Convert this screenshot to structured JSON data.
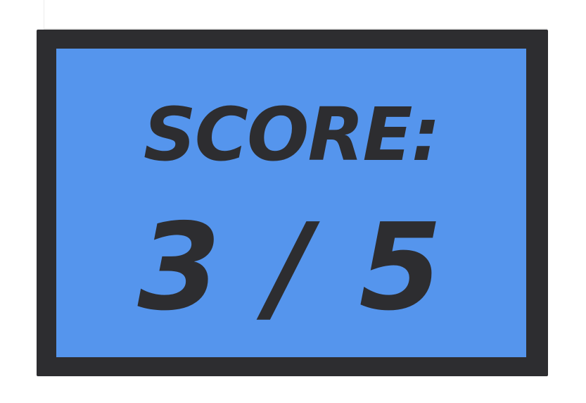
{
  "scoreboard": {
    "label": "SCORE:",
    "value": "3 / 5",
    "score": 3,
    "max_score": 5
  },
  "colors": {
    "frame": "#2d2d30",
    "panel": "#5595ed",
    "text": "#2d2d30",
    "background": "#ffffff"
  }
}
